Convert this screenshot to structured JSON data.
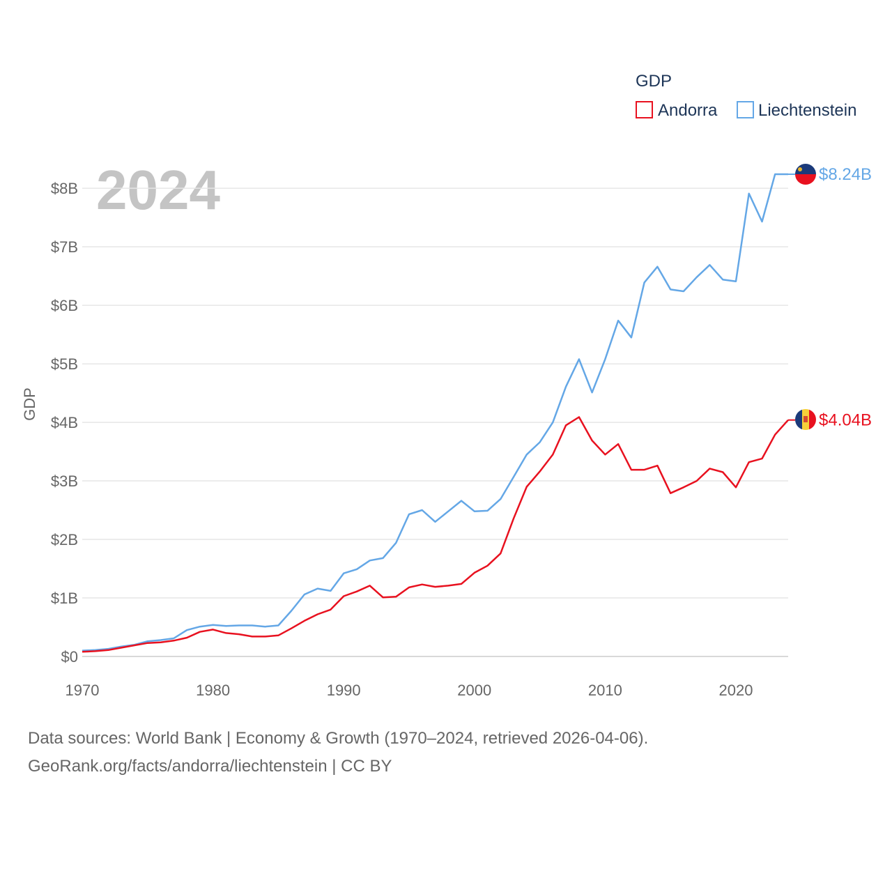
{
  "legend": {
    "title": "GDP",
    "items": [
      {
        "label": "Andorra",
        "color": "#e8111f"
      },
      {
        "label": "Liechtenstein",
        "color": "#64a7e6"
      }
    ]
  },
  "year_label": "2024",
  "chart_data": {
    "type": "line",
    "title": "GDP",
    "xlabel": "",
    "ylabel": "GDP",
    "xlim": [
      1970,
      2024
    ],
    "ylim": [
      0,
      8.24
    ],
    "x_ticks": [
      1970,
      1980,
      1990,
      2000,
      2010,
      2020
    ],
    "x_tick_labels": [
      "1970",
      "1980",
      "1990",
      "2000",
      "2010",
      "2020"
    ],
    "y_ticks": [
      0,
      1,
      2,
      3,
      4,
      5,
      6,
      7,
      8
    ],
    "y_tick_labels": [
      "$0",
      "$1B",
      "$2B",
      "$3B",
      "$4B",
      "$5B",
      "$6B",
      "$7B",
      "$8B"
    ],
    "x": [
      1970,
      1971,
      1972,
      1973,
      1974,
      1975,
      1976,
      1977,
      1978,
      1979,
      1980,
      1981,
      1982,
      1983,
      1984,
      1985,
      1986,
      1987,
      1988,
      1989,
      1990,
      1991,
      1992,
      1993,
      1994,
      1995,
      1996,
      1997,
      1998,
      1999,
      2000,
      2001,
      2002,
      2003,
      2004,
      2005,
      2006,
      2007,
      2008,
      2009,
      2010,
      2011,
      2012,
      2013,
      2014,
      2015,
      2016,
      2017,
      2018,
      2019,
      2020,
      2021,
      2022,
      2023,
      2024
    ],
    "series": [
      {
        "name": "Andorra",
        "color": "#e8111f",
        "end_label": "$4.04B",
        "values": [
          0.08,
          0.09,
          0.11,
          0.15,
          0.19,
          0.23,
          0.24,
          0.27,
          0.32,
          0.42,
          0.46,
          0.4,
          0.38,
          0.34,
          0.34,
          0.36,
          0.48,
          0.61,
          0.72,
          0.8,
          1.03,
          1.11,
          1.21,
          1.01,
          1.02,
          1.18,
          1.23,
          1.19,
          1.21,
          1.24,
          1.43,
          1.55,
          1.76,
          2.36,
          2.9,
          3.16,
          3.45,
          3.95,
          4.09,
          3.69,
          3.45,
          3.63,
          3.19,
          3.19,
          3.26,
          2.79,
          2.89,
          3.0,
          3.21,
          3.15,
          2.89,
          3.32,
          3.38,
          3.79,
          4.04
        ]
      },
      {
        "name": "Liechtenstein",
        "color": "#64a7e6",
        "end_label": "$8.24B",
        "values": [
          0.1,
          0.11,
          0.13,
          0.17,
          0.2,
          0.26,
          0.28,
          0.31,
          0.45,
          0.51,
          0.54,
          0.52,
          0.53,
          0.53,
          0.51,
          0.53,
          0.78,
          1.06,
          1.16,
          1.12,
          1.42,
          1.49,
          1.64,
          1.68,
          1.94,
          2.43,
          2.5,
          2.3,
          2.48,
          2.66,
          2.48,
          2.49,
          2.69,
          3.07,
          3.45,
          3.66,
          4.0,
          4.61,
          5.08,
          4.51,
          5.08,
          5.74,
          5.45,
          6.39,
          6.66,
          6.27,
          6.24,
          6.48,
          6.69,
          6.44,
          6.41,
          7.91,
          7.43,
          8.24,
          8.24
        ]
      }
    ]
  },
  "source": {
    "line1": "Data sources: World Bank | Economy & Growth (1970–2024, retrieved 2026-04-06).",
    "line2": "GeoRank.org/facts/andorra/liechtenstein | CC BY"
  }
}
